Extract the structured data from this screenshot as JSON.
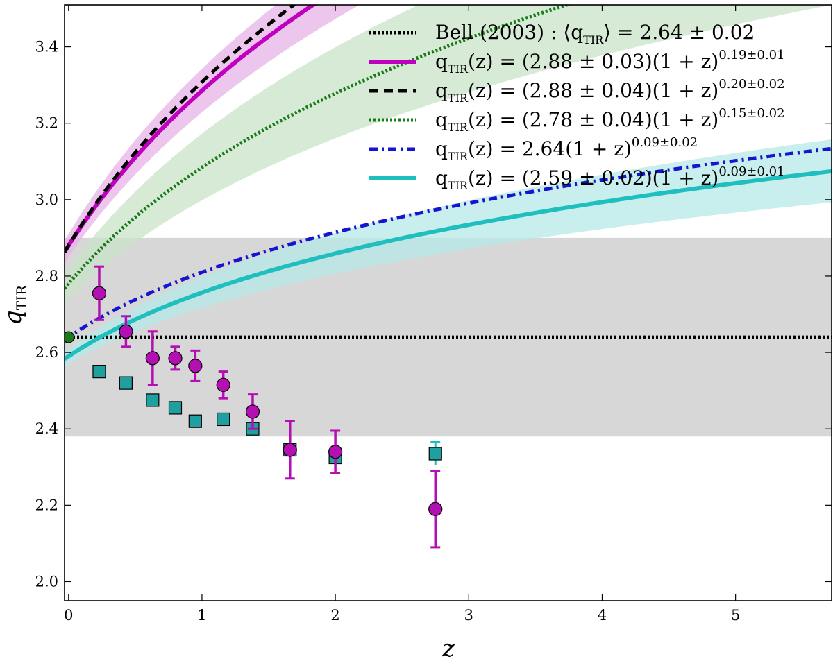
{
  "chart_data": {
    "type": "line",
    "xlabel": "z",
    "ylabel": "q_TIR",
    "xlim": [
      -0.03,
      5.72
    ],
    "ylim": [
      1.95,
      3.51
    ],
    "x_ticks": [
      0,
      1,
      2,
      3,
      4,
      5
    ],
    "x_tick_labels": [
      "0",
      "1",
      "2",
      "3",
      "4",
      "5"
    ],
    "y_ticks": [
      2.0,
      2.2,
      2.4,
      2.6,
      2.8,
      3.0,
      3.2,
      3.4
    ],
    "y_tick_labels": [
      "2.0",
      "2.2",
      "2.4",
      "2.6",
      "2.8",
      "3.0",
      "3.2",
      "3.4"
    ],
    "grey_band": {
      "y_low": 2.38,
      "y_high": 2.9
    },
    "legend": {
      "location": "top-right",
      "entries": [
        {
          "prefix": "Bell (2003) : ⟨q",
          "sub": "TIR",
          "mid": "⟩ = 2.64 ± 0.02",
          "sup": ""
        },
        {
          "prefix": "q",
          "sub": "TIR",
          "mid": "(z) = (2.88 ± 0.03)(1 + z)",
          "sup": "0.19±0.01"
        },
        {
          "prefix": "q",
          "sub": "TIR",
          "mid": "(z) = (2.88 ± 0.04)(1 + z)",
          "sup": "0.20±0.02"
        },
        {
          "prefix": "q",
          "sub": "TIR",
          "mid": "(z) = (2.78 ± 0.04)(1 + z)",
          "sup": "0.15±0.02"
        },
        {
          "prefix": "q",
          "sub": "TIR",
          "mid": "(z) = 2.64(1 + z)",
          "sup": "0.09±0.02"
        },
        {
          "prefix": "q",
          "sub": "TIR",
          "mid": "(z) = (2.59 ± 0.02)(1 + z)",
          "sup": "0.09±0.01"
        }
      ]
    },
    "series": [
      {
        "name": "Bell (2003)",
        "kind": "constant",
        "value": 2.64,
        "color": "#000000",
        "style": "dotted"
      },
      {
        "name": "magenta fit",
        "kind": "power",
        "a": 2.88,
        "b": 0.19,
        "color": "#bf00bf",
        "style": "solid",
        "band": {
          "a_lo": 2.85,
          "a_hi": 2.91,
          "b_lo": 0.18,
          "b_hi": 0.2,
          "color": "#e6b3e6"
        }
      },
      {
        "name": "black dashed fit",
        "kind": "power",
        "a": 2.88,
        "b": 0.2,
        "color": "#000000",
        "style": "dashed"
      },
      {
        "name": "green dotted fit",
        "kind": "power",
        "a": 2.78,
        "b": 0.15,
        "color": "#1a7a1a",
        "style": "dotted",
        "band": {
          "a_lo": 2.74,
          "a_hi": 2.82,
          "b_lo": 0.13,
          "b_hi": 0.17,
          "color": "#c8e3c8"
        }
      },
      {
        "name": "blue dash-dot fit",
        "kind": "power",
        "a": 2.64,
        "b": 0.09,
        "color": "#1515cf",
        "style": "dashdot"
      },
      {
        "name": "cyan fit",
        "kind": "power",
        "a": 2.59,
        "b": 0.09,
        "color": "#1fbfbf",
        "style": "solid",
        "band": {
          "a_lo": 2.57,
          "a_hi": 2.61,
          "b_lo": 0.08,
          "b_hi": 0.1,
          "color": "#b5e8e8"
        }
      }
    ],
    "points_squares": {
      "color": "#1f9f9f",
      "data": [
        {
          "x": 0.23,
          "y": 2.55
        },
        {
          "x": 0.43,
          "y": 2.52
        },
        {
          "x": 0.63,
          "y": 2.475
        },
        {
          "x": 0.8,
          "y": 2.455
        },
        {
          "x": 0.95,
          "y": 2.42
        },
        {
          "x": 1.16,
          "y": 2.425
        },
        {
          "x": 1.38,
          "y": 2.4
        },
        {
          "x": 1.66,
          "y": 2.345
        },
        {
          "x": 2.0,
          "y": 2.325
        },
        {
          "x": 2.75,
          "y": 2.335,
          "err": 0.03
        }
      ]
    },
    "points_circles": {
      "color": "#b30fb3",
      "data": [
        {
          "x": 0.23,
          "y": 2.755,
          "err": 0.07
        },
        {
          "x": 0.43,
          "y": 2.655,
          "err": 0.04
        },
        {
          "x": 0.63,
          "y": 2.585,
          "err": 0.07
        },
        {
          "x": 0.8,
          "y": 2.585,
          "err": 0.03
        },
        {
          "x": 0.95,
          "y": 2.565,
          "err": 0.04
        },
        {
          "x": 1.16,
          "y": 2.515,
          "err": 0.035
        },
        {
          "x": 1.38,
          "y": 2.445,
          "err": 0.045
        },
        {
          "x": 1.66,
          "y": 2.345,
          "err": 0.075
        },
        {
          "x": 2.0,
          "y": 2.34,
          "err": 0.055
        },
        {
          "x": 2.75,
          "y": 2.19,
          "err": 0.1
        }
      ]
    },
    "bell_point": {
      "x": 0.0,
      "y": 2.64,
      "color": "#1a7a1a"
    }
  }
}
